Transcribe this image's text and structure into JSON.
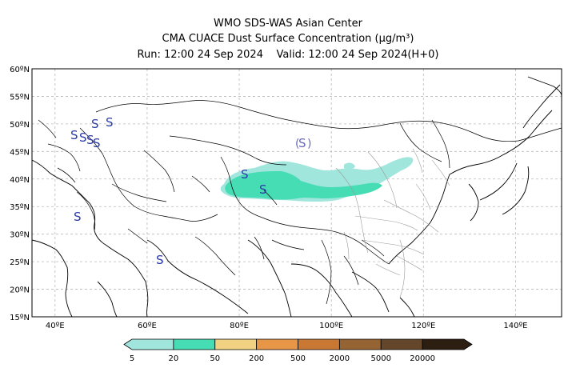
{
  "header": {
    "line1": "WMO SDS-WAS Asian Center",
    "line2": "CMA CUACE Dust Surface Concentration (μg/m³)",
    "line3_run": "Run: 12:00 24 Sep 2024",
    "line3_valid": "Valid: 12:00 24 Sep 2024(H+0)"
  },
  "map": {
    "lat_labels": [
      "60ºN",
      "55ºN",
      "50ºN",
      "45ºN",
      "40ºN",
      "35ºN",
      "30ºN",
      "25ºN",
      "20ºN",
      "15ºN"
    ],
    "lon_labels": [
      "40ºE",
      "60ºE",
      "80ºE",
      "100ºE",
      "120ºE",
      "140ºE"
    ],
    "extent": {
      "lon": [
        35,
        150
      ],
      "lat": [
        15,
        60
      ]
    },
    "gridlines": true,
    "storm_symbol": "S",
    "dust_level_colors": {
      "5-20": "#a0e6dc",
      "20-50": "#46dcb4"
    }
  },
  "colorbar": {
    "labels": [
      "5",
      "20",
      "50",
      "200",
      "500",
      "2000",
      "5000",
      "20000"
    ],
    "colors": [
      "#a0e6dc",
      "#46dcb4",
      "#f0d282",
      "#e69646",
      "#c87832",
      "#966432",
      "#64462a",
      "#2d1e12"
    ]
  }
}
